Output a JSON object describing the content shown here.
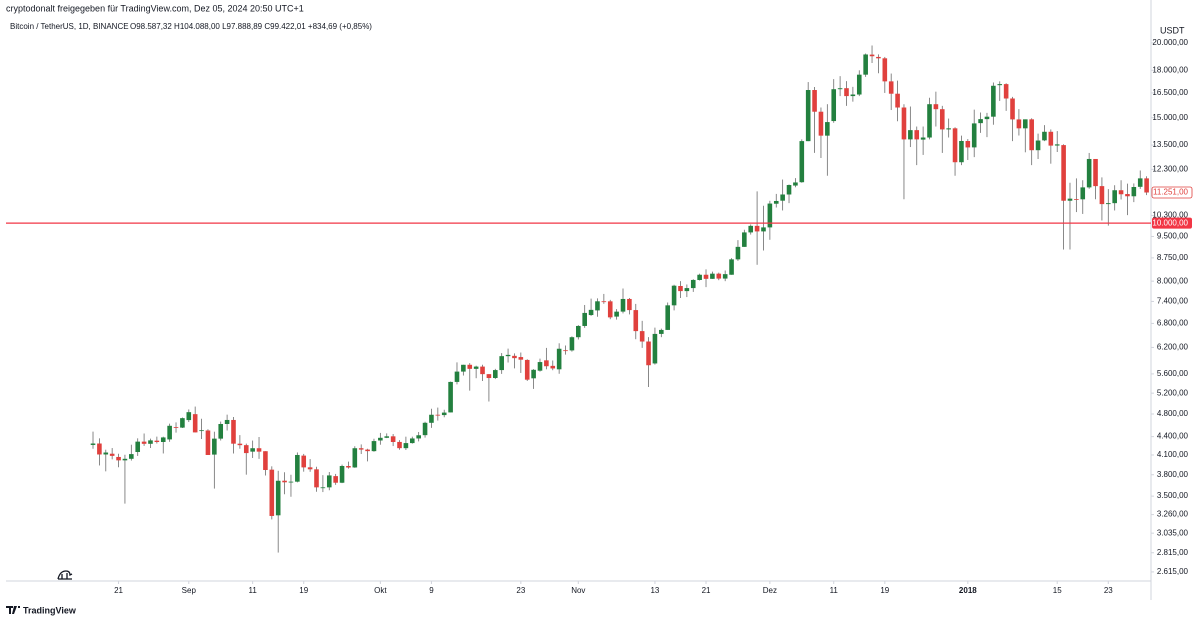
{
  "header": {
    "shared_by": "cryptodonalt freigegeben für TradingView.com, Dez 05, 2024 20:50 UTC+1"
  },
  "footer": {
    "brand": "TradingView"
  },
  "chart_data": {
    "type": "candlestick",
    "symbol": "Bitcoin / TetherUS, 1D, BINANCE",
    "ohlc_legend": "O98.587,32 H104.088,00 L97.888,89 C99.422,01 +834,69 (+0,85%)",
    "currency": "USDT",
    "up_color": "#23803f",
    "down_color": "#e0403d",
    "log_scale": true,
    "grid": false,
    "ylim": [
      2535,
      21180
    ],
    "yticks": [
      {
        "value": 20000,
        "label": "20.000,00"
      },
      {
        "value": 18000,
        "label": "18.000,00"
      },
      {
        "value": 16500,
        "label": "16.500,00"
      },
      {
        "value": 15000,
        "label": "15.000,00"
      },
      {
        "value": 13500,
        "label": "13.500,00"
      },
      {
        "value": 12300,
        "label": "12.300,00"
      },
      {
        "value": 10300,
        "label": "10.300,00"
      },
      {
        "value": 9500,
        "label": "9.500,00"
      },
      {
        "value": 8750,
        "label": "8.750,00"
      },
      {
        "value": 8000,
        "label": "8.000,00"
      },
      {
        "value": 7400,
        "label": "7.400,00"
      },
      {
        "value": 6800,
        "label": "6.800,00"
      },
      {
        "value": 6200,
        "label": "6.200,00"
      },
      {
        "value": 5600,
        "label": "5.600,00"
      },
      {
        "value": 5200,
        "label": "5.200,00"
      },
      {
        "value": 4800,
        "label": "4.800,00"
      },
      {
        "value": 4400,
        "label": "4.400,00"
      },
      {
        "value": 4100,
        "label": "4.100,00"
      },
      {
        "value": 3800,
        "label": "3.800,00"
      },
      {
        "value": 3500,
        "label": "3.500,00"
      },
      {
        "value": 3260,
        "label": "3.260,00"
      },
      {
        "value": 3035,
        "label": "3.035,00"
      },
      {
        "value": 2815,
        "label": "2.815,00"
      },
      {
        "value": 2615,
        "label": "2.615,00"
      }
    ],
    "xlim": [
      "2017-08-04",
      "2018-01-30"
    ],
    "xticks": [
      {
        "value": "2017-08-21",
        "label": "21"
      },
      {
        "value": "2017-09-01",
        "label": "Sep"
      },
      {
        "value": "2017-09-11",
        "label": "11"
      },
      {
        "value": "2017-09-19",
        "label": "19"
      },
      {
        "value": "2017-10-01",
        "label": "Okt"
      },
      {
        "value": "2017-10-09",
        "label": "9"
      },
      {
        "value": "2017-10-23",
        "label": "23"
      },
      {
        "value": "2017-11-01",
        "label": "Nov"
      },
      {
        "value": "2017-11-13",
        "label": "13"
      },
      {
        "value": "2017-11-21",
        "label": "21"
      },
      {
        "value": "2017-12-01",
        "label": "Dez"
      },
      {
        "value": "2017-12-11",
        "label": "11"
      },
      {
        "value": "2017-12-19",
        "label": "19"
      },
      {
        "value": "2018-01-01",
        "label": "2018"
      },
      {
        "value": "2018-01-15",
        "label": "15"
      },
      {
        "value": "2018-01-23",
        "label": "23"
      }
    ],
    "hline": {
      "value": 10000,
      "label": "10.000,00",
      "color": "#f23645"
    },
    "last_price_label": "11.251,00",
    "x": [
      "2017-08-17",
      "2017-08-18",
      "2017-08-19",
      "2017-08-20",
      "2017-08-21",
      "2017-08-22",
      "2017-08-23",
      "2017-08-24",
      "2017-08-25",
      "2017-08-26",
      "2017-08-27",
      "2017-08-28",
      "2017-08-29",
      "2017-08-30",
      "2017-08-31",
      "2017-09-01",
      "2017-09-02",
      "2017-09-03",
      "2017-09-04",
      "2017-09-05",
      "2017-09-06",
      "2017-09-07",
      "2017-09-08",
      "2017-09-09",
      "2017-09-10",
      "2017-09-11",
      "2017-09-12",
      "2017-09-13",
      "2017-09-14",
      "2017-09-15",
      "2017-09-16",
      "2017-09-17",
      "2017-09-18",
      "2017-09-19",
      "2017-09-20",
      "2017-09-21",
      "2017-09-22",
      "2017-09-23",
      "2017-09-24",
      "2017-09-25",
      "2017-09-26",
      "2017-09-27",
      "2017-09-28",
      "2017-09-29",
      "2017-09-30",
      "2017-10-01",
      "2017-10-02",
      "2017-10-03",
      "2017-10-04",
      "2017-10-05",
      "2017-10-06",
      "2017-10-07",
      "2017-10-08",
      "2017-10-09",
      "2017-10-10",
      "2017-10-11",
      "2017-10-12",
      "2017-10-13",
      "2017-10-14",
      "2017-10-15",
      "2017-10-16",
      "2017-10-17",
      "2017-10-18",
      "2017-10-19",
      "2017-10-20",
      "2017-10-21",
      "2017-10-22",
      "2017-10-23",
      "2017-10-24",
      "2017-10-25",
      "2017-10-26",
      "2017-10-27",
      "2017-10-28",
      "2017-10-29",
      "2017-10-30",
      "2017-10-31",
      "2017-11-01",
      "2017-11-02",
      "2017-11-03",
      "2017-11-04",
      "2017-11-05",
      "2017-11-06",
      "2017-11-07",
      "2017-11-08",
      "2017-11-09",
      "2017-11-10",
      "2017-11-11",
      "2017-11-12",
      "2017-11-13",
      "2017-11-14",
      "2017-11-15",
      "2017-11-16",
      "2017-11-17",
      "2017-11-18",
      "2017-11-19",
      "2017-11-20",
      "2017-11-21",
      "2017-11-22",
      "2017-11-23",
      "2017-11-24",
      "2017-11-25",
      "2017-11-26",
      "2017-11-27",
      "2017-11-28",
      "2017-11-29",
      "2017-11-30",
      "2017-12-01",
      "2017-12-02",
      "2017-12-03",
      "2017-12-04",
      "2017-12-05",
      "2017-12-06",
      "2017-12-07",
      "2017-12-08",
      "2017-12-09",
      "2017-12-10",
      "2017-12-11",
      "2017-12-12",
      "2017-12-13",
      "2017-12-14",
      "2017-12-15",
      "2017-12-16",
      "2017-12-17",
      "2017-12-18",
      "2017-12-19",
      "2017-12-20",
      "2017-12-21",
      "2017-12-22",
      "2017-12-23",
      "2017-12-24",
      "2017-12-25",
      "2017-12-26",
      "2017-12-27",
      "2017-12-28",
      "2017-12-29",
      "2017-12-30",
      "2017-12-31",
      "2018-01-01",
      "2018-01-02",
      "2018-01-03",
      "2018-01-04",
      "2018-01-05",
      "2018-01-06",
      "2018-01-07",
      "2018-01-08",
      "2018-01-09",
      "2018-01-10",
      "2018-01-11",
      "2018-01-12",
      "2018-01-13",
      "2018-01-14",
      "2018-01-15",
      "2018-01-16",
      "2018-01-17",
      "2018-01-18",
      "2018-01-19",
      "2018-01-20",
      "2018-01-21",
      "2018-01-22",
      "2018-01-23",
      "2018-01-24",
      "2018-01-25",
      "2018-01-26",
      "2018-01-27",
      "2018-01-28",
      "2018-01-29"
    ],
    "open": [
      4261,
      4285,
      4108,
      4120,
      4069,
      4016,
      4040,
      4147,
      4316,
      4280,
      4332,
      4310,
      4353,
      4564,
      4555,
      4689,
      4797,
      4508,
      4505,
      4106,
      4366,
      4619,
      4691,
      4282,
      4258,
      4153,
      4208,
      4160,
      3875,
      3251,
      3714,
      3690,
      3700,
      4090,
      3910,
      3880,
      3620,
      3620,
      3780,
      3685,
      3930,
      3908,
      4208,
      4186,
      4161,
      4335,
      4380,
      4405,
      4311,
      4209,
      4292,
      4369,
      4425,
      4640,
      4786,
      4780,
      4829,
      5430,
      5650,
      5800,
      5710,
      5760,
      5595,
      5513,
      5683,
      5996,
      6003,
      5975,
      5909,
      5506,
      5670,
      5900,
      5776,
      5700,
      6133,
      6130,
      6449,
      6734,
      7023,
      7149,
      7404,
      7403,
      6981,
      7116,
      7471,
      7158,
      6602,
      6343,
      5830,
      6531,
      6632,
      7290,
      7853,
      7700,
      7790,
      8036,
      8200,
      8072,
      8234,
      8080,
      8200,
      8700,
      9128,
      9650,
      9896,
      9687,
      9838,
      10775,
      10902,
      11165,
      11555,
      11705,
      13707,
      16686,
      15350,
      14000,
      14808,
      16739,
      16803,
      16301,
      16399,
      17700,
      19120,
      18950,
      18850,
      17250,
      16450,
      15600,
      13800,
      14300,
      13788,
      13900,
      15800,
      15500,
      14340,
      14400,
      12640,
      13715,
      13382,
      14690,
      14919,
      15059,
      17000,
      17069,
      16150,
      14902,
      14400,
      14907,
      13238,
      13749,
      14210,
      13477,
      13500,
      10900,
      10972,
      10960,
      11474,
      12799,
      11530,
      10760,
      10799,
      11349,
      11184,
      11089,
      11499,
      11879
    ],
    "high": [
      4485,
      4371,
      4184,
      4211,
      4119,
      4104,
      4265,
      4371,
      4453,
      4367,
      4400,
      4399,
      4625,
      4647,
      4736,
      4885,
      4939,
      4714,
      4527,
      4484,
      4662,
      4788,
      4745,
      4426,
      4283,
      4334,
      4394,
      4160,
      3925,
      3858,
      3837,
      3800,
      4140,
      4117,
      4036,
      3918,
      3794,
      3840,
      3812,
      3950,
      3997,
      4240,
      4270,
      4199,
      4364,
      4463,
      4455,
      4444,
      4342,
      4399,
      4399,
      4479,
      4658,
      4898,
      4920,
      4879,
      5436,
      5854,
      5800,
      5837,
      5780,
      5800,
      5596,
      5710,
      6067,
      6171,
      6060,
      6080,
      5925,
      5704,
      5939,
      6189,
      5897,
      6300,
      6248,
      6470,
      6755,
      7300,
      7480,
      7488,
      7617,
      7445,
      7185,
      7776,
      7499,
      7330,
      6868,
      6450,
      6692,
      6665,
      7370,
      7889,
      8000,
      7899,
      8061,
      8234,
      8373,
      8300,
      8267,
      8335,
      8743,
      9370,
      9750,
      9950,
      11300,
      10690,
      10898,
      11190,
      11825,
      11600,
      11888,
      13800,
      17204,
      16880,
      15600,
      15800,
      17400,
      17600,
      17267,
      16890,
      18000,
      19200,
      19798,
      19140,
      18950,
      17777,
      17300,
      15800,
      15660,
      14500,
      14500,
      16200,
      16580,
      15700,
      14950,
      14460,
      14000,
      13818,
      15473,
      15307,
      15280,
      17176,
      17252,
      17125,
      16250,
      15500,
      14900,
      14968,
      14109,
      14580,
      14339,
      14249,
      13542,
      11680,
      11878,
      11795,
      13099,
      12799,
      11926,
      11399,
      11570,
      11794,
      11643,
      11650,
      12244,
      11975
    ],
    "low": [
      4200,
      3938,
      3850,
      4032,
      3911,
      3400,
      4013,
      4085,
      4247,
      4212,
      4285,
      4124,
      4313,
      4469,
      4549,
      4654,
      4470,
      4360,
      4100,
      3603,
      4335,
      4505,
      4124,
      4200,
      3801,
      4053,
      4040,
      3789,
      3200,
      2817,
      3525,
      3492,
      3690,
      3845,
      3843,
      3560,
      3555,
      3580,
      3655,
      3680,
      3891,
      3902,
      4115,
      4000,
      4151,
      4265,
      4375,
      4243,
      4183,
      4179,
      4283,
      4320,
      4384,
      4550,
      4680,
      4740,
      4829,
      5380,
      5565,
      5251,
      5508,
      5450,
      5037,
      5490,
      5600,
      5850,
      5720,
      5621,
      5450,
      5286,
      5650,
      5700,
      5680,
      5603,
      6030,
      6101,
      6393,
      6685,
      6999,
      6976,
      7333,
      6911,
      6901,
      7069,
      7040,
      6400,
      6190,
      5325,
      5803,
      6450,
      6632,
      7150,
      7500,
      7525,
      7676,
      8021,
      7820,
      8072,
      8030,
      8000,
      8200,
      8650,
      9128,
      9570,
      8520,
      9000,
      9380,
      10620,
      10500,
      10802,
      11480,
      11680,
      13706,
      13100,
      12850,
      12000,
      14711,
      16300,
      15700,
      15955,
      16300,
      17550,
      18510,
      17800,
      16500,
      15450,
      14800,
      10961,
      13400,
      12500,
      13000,
      13800,
      14500,
      13100,
      13900,
      12000,
      12500,
      12750,
      12890,
      14150,
      13918,
      14600,
      16000,
      15400,
      13706,
      14011,
      13131,
      12500,
      12800,
      13706,
      12569,
      13147,
      9035,
      9037,
      10435,
      10360,
      11412,
      10965,
      10100,
      9905,
      10500,
      10950,
      10311,
      10842,
      11408,
      11139
    ],
    "close": [
      4285,
      4108,
      4139,
      4086,
      4016,
      4040,
      4114,
      4316,
      4280,
      4337,
      4310,
      4386,
      4587,
      4555,
      4724,
      4834,
      4472,
      4509,
      4100,
      4366,
      4619,
      4691,
      4282,
      4258,
      4130,
      4208,
      4153,
      3870,
      3243,
      3713,
      3691,
      3700,
      4100,
      3909,
      3880,
      3620,
      3620,
      3790,
      3685,
      3930,
      3907,
      4208,
      4186,
      4161,
      4325,
      4380,
      4405,
      4310,
      4209,
      4292,
      4369,
      4423,
      4640,
      4786,
      4784,
      4826,
      5430,
      5650,
      5800,
      5710,
      5760,
      5595,
      5512,
      5683,
      5996,
      6025,
      5950,
      5915,
      5477,
      5689,
      5861,
      5768,
      5719,
      6169,
      6130,
      6449,
      6734,
      7080,
      7164,
      7404,
      7381,
      6960,
      7115,
      7471,
      7158,
      6602,
      6343,
      5790,
      6531,
      6632,
      7290,
      7862,
      7700,
      7790,
      8037,
      8200,
      8072,
      8234,
      8080,
      8219,
      8700,
      9128,
      9650,
      9896,
      9687,
      9838,
      10782,
      10890,
      11165,
      11579,
      11694,
      13710,
      16686,
      15350,
      14000,
      14750,
      16739,
      16800,
      16300,
      16400,
      17700,
      19130,
      19000,
      18850,
      17250,
      16450,
      15600,
      13800,
      14300,
      13800,
      13900,
      15800,
      15500,
      14340,
      14400,
      12640,
      13716,
      13380,
      14675,
      14919,
      15059,
      16960,
      17069,
      16150,
      14902,
      14400,
      14907,
      13238,
      13740,
      14210,
      13474,
      13539,
      10900,
      10988,
      10961,
      11474,
      12799,
      11530,
      10760,
      10799,
      11349,
      11175,
      11089,
      11491,
      11879,
      11251
    ]
  }
}
